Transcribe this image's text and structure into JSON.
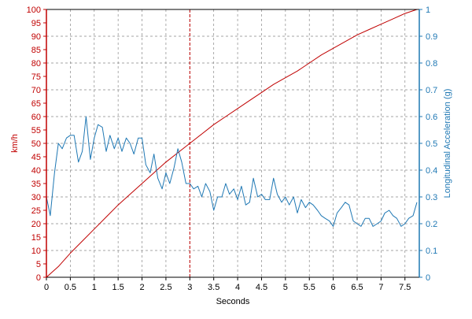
{
  "chart_data": {
    "type": "line",
    "xlabel": "Seconds",
    "ylabel_left": "km/h",
    "ylabel_right": "Longitudinal Acceleration (g)",
    "xlim": [
      0,
      7.8
    ],
    "ylim_left": [
      0,
      100
    ],
    "ylim_right": [
      0,
      1
    ],
    "x_ticks": [
      0,
      0.5,
      1,
      1.5,
      2,
      2.5,
      3,
      3.5,
      4,
      4.5,
      5,
      5.5,
      6,
      6.5,
      7,
      7.5
    ],
    "x_tick_labels": [
      "0",
      "0.5",
      "1",
      "1.5",
      "2",
      "2.5",
      "3",
      "3.5",
      "4",
      "4.5",
      "5",
      "5.5",
      "6",
      "6.5",
      "7",
      "7.5"
    ],
    "y_left_ticks": [
      0,
      5,
      10,
      15,
      20,
      25,
      30,
      35,
      40,
      45,
      50,
      55,
      60,
      65,
      70,
      75,
      80,
      85,
      90,
      95,
      100
    ],
    "y_left_tick_labels": [
      "0",
      "5",
      "10",
      "15",
      "20",
      "25",
      "30",
      "35",
      "40",
      "45",
      "50",
      "55",
      "60",
      "65",
      "70",
      "75",
      "80",
      "85",
      "90",
      "95",
      "100"
    ],
    "y_right_ticks": [
      0,
      0.1,
      0.2,
      0.3,
      0.4,
      0.5,
      0.6,
      0.7,
      0.8,
      0.9,
      1
    ],
    "y_right_tick_labels": [
      "0",
      "0.1",
      "0.2",
      "0.3",
      "0.4",
      "0.5",
      "0.6",
      "0.7",
      "0.8",
      "0.9",
      "1"
    ],
    "grid": true,
    "vertical_marker_x": 3,
    "colors": {
      "speed": "#c00000",
      "accel": "#1f78b4",
      "grid": "#888888",
      "marker": "#c00000"
    },
    "series": [
      {
        "axis": "left",
        "x": [
          0,
          0.25,
          0.5,
          0.75,
          1,
          1.25,
          1.5,
          1.75,
          2,
          2.25,
          2.5,
          2.75,
          3,
          3.25,
          3.5,
          3.75,
          4,
          4.25,
          4.5,
          4.75,
          5,
          5.25,
          5.5,
          5.75,
          6,
          6.25,
          6.5,
          6.75,
          7,
          7.25,
          7.5,
          7.75
        ],
        "values": [
          0,
          4,
          9,
          13.5,
          18,
          22.5,
          27,
          31,
          35,
          39,
          43,
          46.5,
          50,
          53.5,
          57,
          60,
          63,
          66,
          69,
          72,
          74.5,
          77,
          80,
          83,
          85.5,
          88,
          90.5,
          92.5,
          94.5,
          96.5,
          98.5,
          100
        ]
      },
      {
        "axis": "right",
        "x": [
          0,
          0.08,
          0.17,
          0.25,
          0.33,
          0.42,
          0.5,
          0.58,
          0.67,
          0.75,
          0.83,
          0.92,
          1,
          1.08,
          1.17,
          1.25,
          1.33,
          1.42,
          1.5,
          1.58,
          1.67,
          1.75,
          1.83,
          1.92,
          2,
          2.08,
          2.17,
          2.25,
          2.33,
          2.42,
          2.5,
          2.58,
          2.67,
          2.75,
          2.83,
          2.92,
          3,
          3.08,
          3.17,
          3.25,
          3.33,
          3.42,
          3.5,
          3.58,
          3.67,
          3.75,
          3.83,
          3.92,
          4,
          4.08,
          4.17,
          4.25,
          4.33,
          4.42,
          4.5,
          4.58,
          4.67,
          4.75,
          4.83,
          4.92,
          5,
          5.08,
          5.17,
          5.25,
          5.33,
          5.42,
          5.5,
          5.58,
          5.67,
          5.75,
          5.83,
          5.92,
          6,
          6.08,
          6.17,
          6.25,
          6.33,
          6.42,
          6.5,
          6.58,
          6.67,
          6.75,
          6.83,
          6.92,
          7,
          7.08,
          7.17,
          7.25,
          7.33,
          7.42,
          7.5,
          7.58,
          7.67,
          7.75
        ],
        "values": [
          0.3,
          0.23,
          0.39,
          0.5,
          0.48,
          0.52,
          0.53,
          0.53,
          0.43,
          0.47,
          0.6,
          0.44,
          0.52,
          0.57,
          0.56,
          0.47,
          0.53,
          0.48,
          0.52,
          0.47,
          0.52,
          0.5,
          0.46,
          0.52,
          0.52,
          0.42,
          0.39,
          0.46,
          0.37,
          0.33,
          0.39,
          0.35,
          0.41,
          0.48,
          0.43,
          0.35,
          0.35,
          0.33,
          0.34,
          0.3,
          0.35,
          0.32,
          0.25,
          0.3,
          0.3,
          0.35,
          0.31,
          0.33,
          0.29,
          0.34,
          0.27,
          0.28,
          0.37,
          0.3,
          0.31,
          0.29,
          0.29,
          0.37,
          0.31,
          0.28,
          0.3,
          0.27,
          0.3,
          0.24,
          0.29,
          0.26,
          0.28,
          0.27,
          0.25,
          0.23,
          0.22,
          0.21,
          0.19,
          0.24,
          0.26,
          0.28,
          0.27,
          0.21,
          0.2,
          0.19,
          0.22,
          0.22,
          0.19,
          0.2,
          0.21,
          0.24,
          0.25,
          0.23,
          0.22,
          0.19,
          0.2,
          0.22,
          0.23,
          0.28
        ]
      }
    ]
  }
}
